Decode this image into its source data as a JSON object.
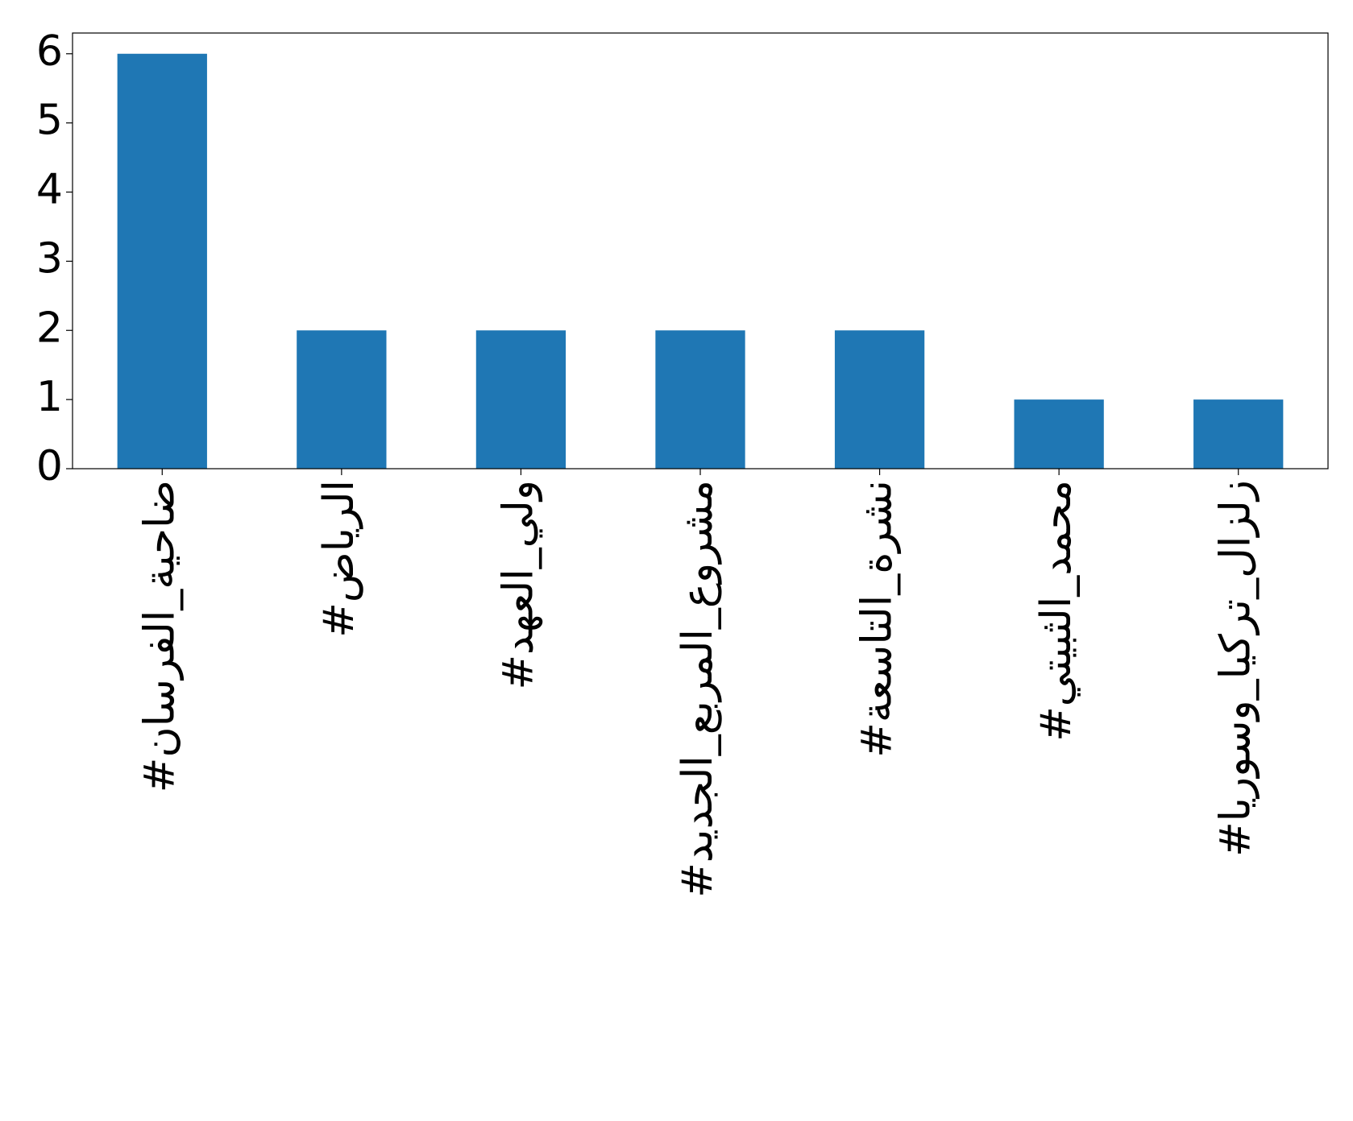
{
  "chart_data": {
    "type": "bar",
    "categories": [
      "#ضاحية_الفرسان",
      "#الرياض",
      "#ولي_العهد",
      "#مشروع_المربع_الجديد",
      "#نشرة_التاسعة",
      "#محمد_الثبيتي",
      "#زلزال_تركيا_وسوريا"
    ],
    "values": [
      6,
      2,
      2,
      2,
      2,
      1,
      1
    ],
    "color": "#1f77b4",
    "ylim": [
      0,
      6.3
    ],
    "yticks": [
      0,
      1,
      2,
      3,
      4,
      5,
      6
    ],
    "grid": false
  }
}
